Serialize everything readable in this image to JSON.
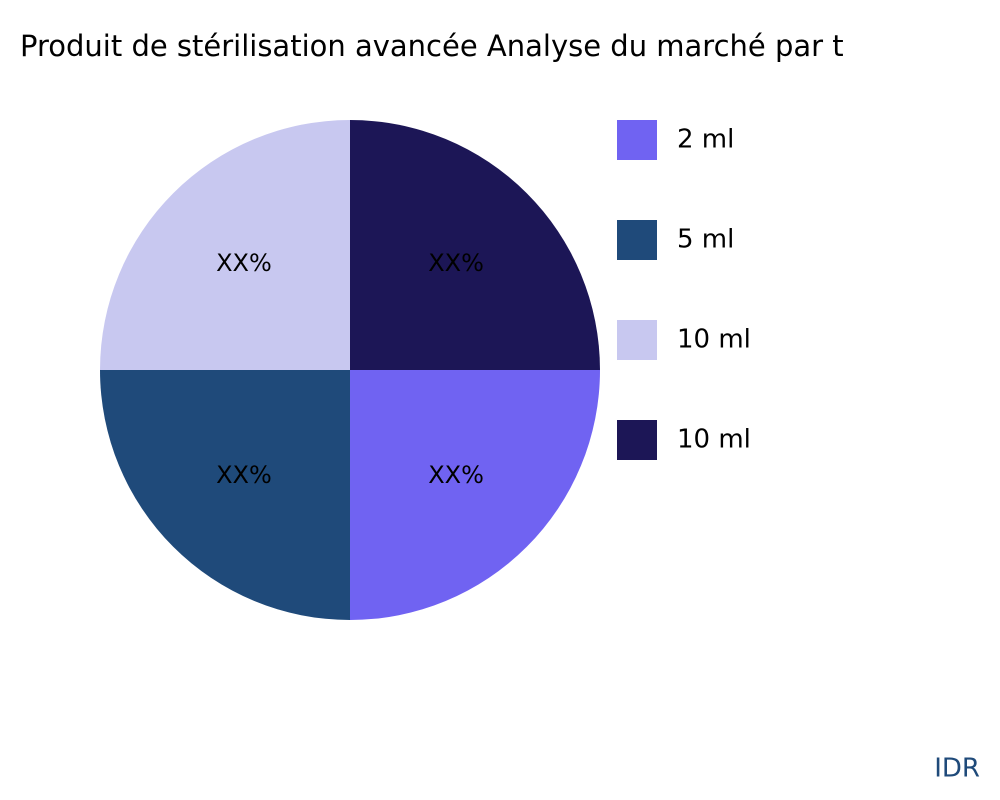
{
  "chart_data": {
    "type": "pie",
    "title": "Produit de stérilisation avancée Analyse du marché par t",
    "categories": [
      "2 ml",
      "5 ml",
      "10 ml",
      "10 ml"
    ],
    "values": [
      25,
      25,
      25,
      25
    ],
    "value_labels": [
      "XX%",
      "XX%",
      "XX%",
      "XX%"
    ],
    "colors": [
      "#7063f2",
      "#1f4a7a",
      "#c8c8f0",
      "#1c1656"
    ],
    "legend": "right"
  },
  "watermark": "IDR"
}
